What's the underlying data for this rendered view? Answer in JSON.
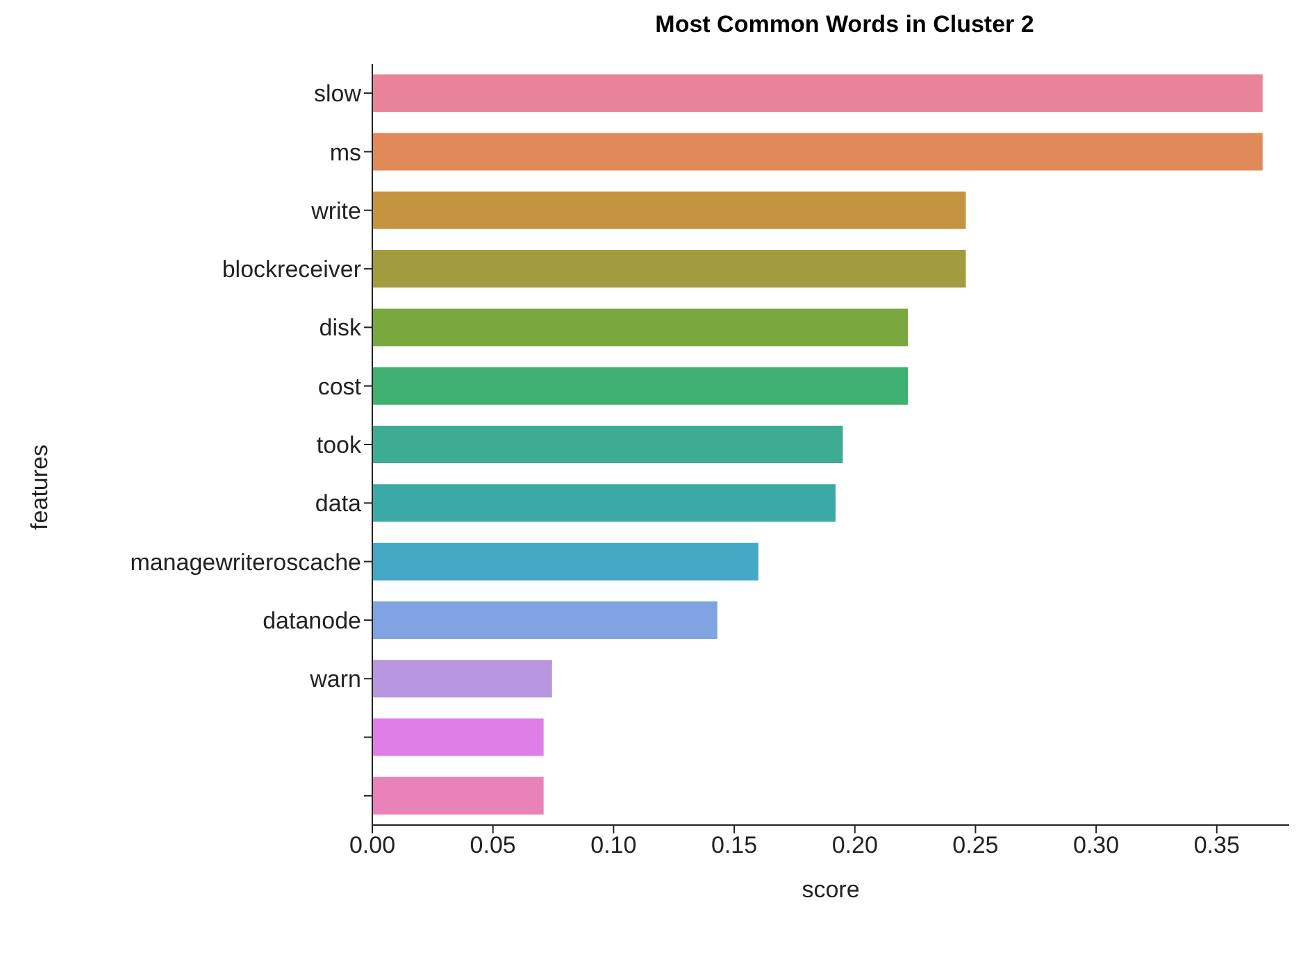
{
  "chart_data": {
    "type": "bar",
    "orientation": "horizontal",
    "title": "Most Common Words in Cluster 2",
    "xlabel": "score",
    "ylabel": "features",
    "categories": [
      "slow",
      "ms",
      "write",
      "blockreceiver",
      "disk",
      "cost",
      "took",
      "data",
      "managewriteroscache",
      "datanode",
      "warn",
      null,
      null
    ],
    "values": [
      0.369,
      0.369,
      0.246,
      0.246,
      0.222,
      0.222,
      0.195,
      0.192,
      0.16,
      0.143,
      0.0745,
      0.071,
      0.071
    ],
    "colors": [
      "#e8839a",
      "#e08a5a",
      "#c59440",
      "#a29c3e",
      "#7aa83e",
      "#3fb070",
      "#3eac93",
      "#3ba9a5",
      "#44a8c5",
      "#7ea3e0",
      "#b896e0",
      "#e07ee8",
      "#e882b8"
    ],
    "xlim": [
      0,
      0.38
    ],
    "xticks": [
      {
        "value": 0,
        "label": "0.00"
      },
      {
        "value": 0.05,
        "label": "0.05"
      },
      {
        "value": 0.1,
        "label": "0.10"
      },
      {
        "value": 0.15,
        "label": "0.15"
      },
      {
        "value": 0.2,
        "label": "0.20"
      },
      {
        "value": 0.25,
        "label": "0.25"
      },
      {
        "value": 0.3,
        "label": "0.30"
      },
      {
        "value": 0.35,
        "label": "0.35"
      }
    ],
    "grid": false,
    "legend": false
  }
}
